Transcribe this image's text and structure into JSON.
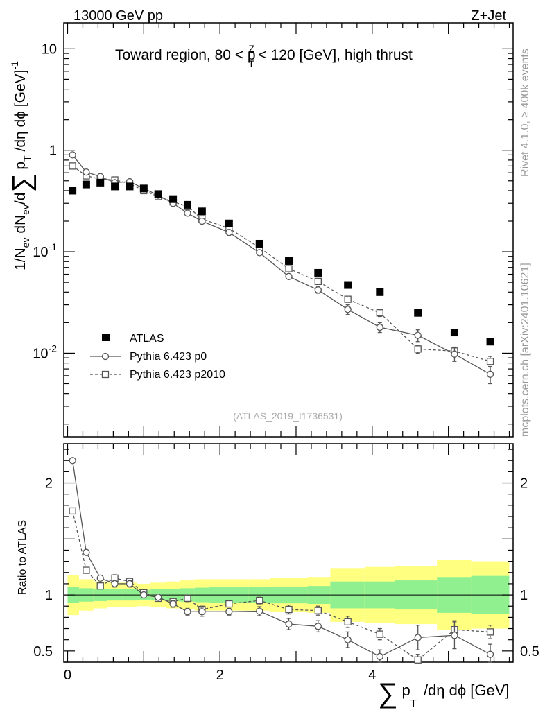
{
  "header": {
    "energy_label": "13000 GeV pp",
    "process_label": "Z+Jet",
    "rivet_label": "Rivet 4.1.0, ≥ 400k events",
    "mcplots_label": "mcplots.cern.ch [arXiv:2401.10621]",
    "analysis_ref": "(ATLAS_2019_I1736531)"
  },
  "chart_data": {
    "type": "scatter",
    "title": "Toward region, 80 < p_T^Z < 120 [GeV], high thrust",
    "title_parts": {
      "pre": "Toward region, 80 < p",
      "sub": "T",
      "sup": "Z",
      "post": " < 120 [GeV], high thrust"
    },
    "xlabel": "∑ p_T /dη dϕ [GeV]",
    "xlabel_parts": {
      "sum": "∑",
      "p": "p",
      "sub": "T",
      "rest": "/dη dϕ [GeV]"
    },
    "ylabel": "1/N_ev dN_ev/d∑ p_T /dη dϕ [GeV]^-1",
    "ylabel_parts": {
      "a": "1/N",
      "a_sub": "ev",
      "b": " dN",
      "b_sub": "ev",
      "c": "/d",
      "sum": "∑",
      "d": " p",
      "d_sub": "T",
      "e": " /dη dϕ  [GeV]",
      "e_sup": "-1"
    },
    "ratio_ylabel": "Ratio to ATLAS",
    "xlim": [
      -0.05,
      5.85
    ],
    "ylim": [
      0.0015,
      18
    ],
    "ratio_ylim": [
      0.4,
      2.35
    ],
    "x_ticks": [
      0,
      2,
      4
    ],
    "x_tick_labels": [
      "0",
      "2",
      "4"
    ],
    "y_ticks": [
      {
        "mant": "10",
        "exp": "-2"
      },
      {
        "mant": "10",
        "exp": "-1"
      },
      {
        "mant": "1",
        "exp": ""
      },
      {
        "mant": "10",
        "exp": ""
      }
    ],
    "ratio_y_ticks": [
      0.5,
      1,
      2
    ],
    "ratio_y_tick_labels": [
      "0.5",
      "1",
      "2"
    ],
    "x": [
      0.065,
      0.245,
      0.43,
      0.62,
      0.815,
      1.0,
      1.19,
      1.385,
      1.575,
      1.765,
      2.12,
      2.52,
      2.905,
      3.29,
      3.68,
      4.1,
      4.6,
      5.08,
      5.55
    ],
    "x_edges": [
      0.0,
      0.15,
      0.34,
      0.52,
      0.72,
      0.91,
      1.09,
      1.29,
      1.48,
      1.67,
      1.86,
      2.38,
      2.66,
      3.15,
      3.45,
      3.9,
      4.3,
      4.85,
      5.3,
      5.8
    ],
    "series": [
      {
        "name": "ATLAS",
        "values": [
          0.4,
          0.46,
          0.48,
          0.44,
          0.44,
          0.42,
          0.37,
          0.33,
          0.29,
          0.25,
          0.19,
          0.12,
          0.081,
          0.062,
          0.047,
          0.04,
          0.025,
          0.016,
          0.013
        ]
      },
      {
        "name": "Pythia 6.423 p0",
        "values": [
          0.9,
          0.61,
          0.55,
          0.48,
          0.49,
          0.42,
          0.36,
          0.3,
          0.24,
          0.2,
          0.155,
          0.098,
          0.057,
          0.042,
          0.027,
          0.018,
          0.015,
          0.0098,
          0.0062
        ],
        "errors": [
          0,
          0,
          0,
          0,
          0,
          0,
          0,
          0,
          0,
          0,
          0,
          0,
          0.003,
          0.003,
          0.003,
          0.002,
          0.002,
          0.0015,
          0.0012
        ],
        "ratio": [
          2.2,
          1.38,
          1.15,
          1.1,
          1.1,
          1.0,
          0.98,
          0.92,
          0.85,
          0.85,
          0.85,
          0.855,
          0.74,
          0.72,
          0.6,
          0.45,
          0.62,
          0.64,
          0.47
        ],
        "ratio_errors": [
          0,
          0.02,
          0.02,
          0.03,
          0.03,
          0.02,
          0.02,
          0.03,
          0.03,
          0.04,
          0.03,
          0.04,
          0.05,
          0.05,
          0.07,
          0.06,
          0.11,
          0.12,
          0.09
        ]
      },
      {
        "name": "Pythia 6.423 p2010",
        "values": [
          0.7,
          0.56,
          0.52,
          0.51,
          0.47,
          0.4,
          0.35,
          0.31,
          0.28,
          0.21,
          0.17,
          0.11,
          0.068,
          0.051,
          0.034,
          0.025,
          0.011,
          0.0105,
          0.0083
        ],
        "errors": [
          0,
          0,
          0,
          0,
          0,
          0,
          0,
          0,
          0,
          0,
          0,
          0,
          0.002,
          0.002,
          0.002,
          0.002,
          0.001,
          0.001,
          0.001
        ],
        "ratio": [
          1.75,
          1.22,
          1.08,
          1.15,
          1.12,
          1.02,
          0.97,
          0.94,
          0.97,
          0.87,
          0.92,
          0.95,
          0.87,
          0.86,
          0.76,
          0.65,
          0.42,
          0.69,
          0.67
        ],
        "ratio_errors": [
          0,
          0.02,
          0.02,
          0.03,
          0.03,
          0.02,
          0.02,
          0.03,
          0.03,
          0.03,
          0.02,
          0.03,
          0.04,
          0.04,
          0.05,
          0.05,
          0.05,
          0.08,
          0.06
        ]
      }
    ],
    "ratio_bands": {
      "green_half_width": [
        0.07,
        0.06,
        0.055,
        0.05,
        0.05,
        0.045,
        0.05,
        0.055,
        0.06,
        0.065,
        0.07,
        0.07,
        0.075,
        0.08,
        0.12,
        0.12,
        0.13,
        0.16,
        0.17
      ],
      "yellow_half_width": [
        0.18,
        0.14,
        0.12,
        0.11,
        0.11,
        0.1,
        0.11,
        0.12,
        0.13,
        0.14,
        0.14,
        0.14,
        0.15,
        0.16,
        0.24,
        0.25,
        0.26,
        0.31,
        0.3
      ]
    },
    "legend_position": "lower-left",
    "colors": {
      "data": "#000000",
      "mc": "#555555",
      "green_band": "#90f090",
      "yellow_band": "#ffff80"
    }
  }
}
